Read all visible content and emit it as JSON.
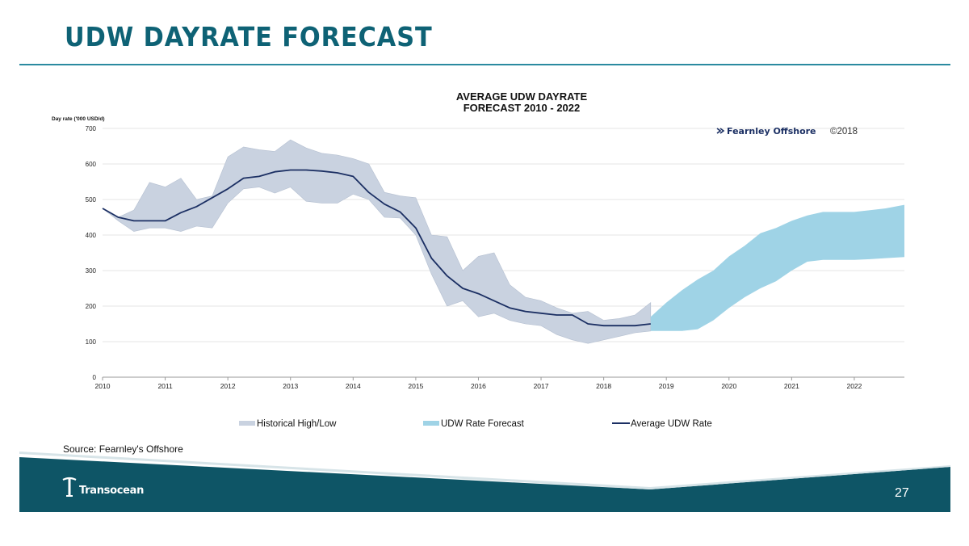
{
  "slide": {
    "title": "UDW DAYRATE FORECAST",
    "source": "Source: Fearnley's Offshore",
    "page_number": "27",
    "logo_text": "Transocean"
  },
  "colors": {
    "title": "#0e6275",
    "footer_band": "#0e5566",
    "historical_band": "#c9d2e0",
    "forecast_band": "#9fd3e6",
    "average_line": "#1b2f63"
  },
  "chart_data": {
    "type": "area",
    "title_line1": "AVERAGE UDW DAYRATE",
    "title_line2": "FORECAST 2010 - 2022",
    "ylabel": "Day rate ('000 USD/d)",
    "watermark_brand": "Fearnley Offshore",
    "watermark_year": "©2018",
    "ylim": [
      0,
      700
    ],
    "yticks": [
      0,
      100,
      200,
      300,
      400,
      500,
      600,
      700
    ],
    "xlim": [
      2010,
      2022.8
    ],
    "xticks": [
      2010,
      2011,
      2012,
      2013,
      2014,
      2015,
      2016,
      2017,
      2018,
      2019,
      2020,
      2021,
      2022
    ],
    "grid": true,
    "legend_position": "bottom",
    "legend": [
      {
        "label": "Historical High/Low",
        "kind": "historical"
      },
      {
        "label": "UDW Rate Forecast",
        "kind": "forecast"
      },
      {
        "label": "Average UDW Rate",
        "kind": "line"
      }
    ],
    "series": [
      {
        "name": "Historical High/Low",
        "x": [
          2010.0,
          2010.25,
          2010.5,
          2010.75,
          2011.0,
          2011.25,
          2011.5,
          2011.75,
          2012.0,
          2012.25,
          2012.5,
          2012.75,
          2013.0,
          2013.25,
          2013.5,
          2013.75,
          2014.0,
          2014.25,
          2014.5,
          2014.75,
          2015.0,
          2015.25,
          2015.5,
          2015.75,
          2016.0,
          2016.25,
          2016.5,
          2016.75,
          2017.0,
          2017.25,
          2017.5,
          2017.75,
          2018.0,
          2018.25,
          2018.5,
          2018.75
        ],
        "high": [
          475,
          450,
          470,
          548,
          535,
          560,
          500,
          510,
          620,
          648,
          640,
          635,
          668,
          645,
          630,
          625,
          615,
          600,
          520,
          510,
          505,
          400,
          395,
          300,
          340,
          350,
          260,
          225,
          215,
          195,
          180,
          185,
          160,
          165,
          175,
          210
        ],
        "low": [
          475,
          440,
          410,
          420,
          420,
          410,
          425,
          420,
          490,
          530,
          535,
          518,
          535,
          495,
          490,
          490,
          515,
          500,
          450,
          448,
          400,
          290,
          200,
          215,
          170,
          180,
          160,
          150,
          145,
          120,
          105,
          95,
          105,
          115,
          125,
          130
        ]
      },
      {
        "name": "UDW Rate Forecast",
        "x": [
          2018.75,
          2019.0,
          2019.25,
          2019.5,
          2019.75,
          2020.0,
          2020.25,
          2020.5,
          2020.75,
          2021.0,
          2021.25,
          2021.5,
          2021.75,
          2022.0,
          2022.25,
          2022.5,
          2022.8
        ],
        "high": [
          170,
          210,
          245,
          275,
          300,
          340,
          370,
          405,
          420,
          440,
          455,
          465,
          465,
          465,
          470,
          475,
          485
        ],
        "low": [
          130,
          130,
          130,
          135,
          160,
          195,
          225,
          250,
          270,
          300,
          325,
          330,
          330,
          330,
          332,
          335,
          338
        ]
      },
      {
        "name": "Average UDW Rate",
        "x": [
          2010.0,
          2010.25,
          2010.5,
          2010.75,
          2011.0,
          2011.25,
          2011.5,
          2011.75,
          2012.0,
          2012.25,
          2012.5,
          2012.75,
          2013.0,
          2013.25,
          2013.5,
          2013.75,
          2014.0,
          2014.25,
          2014.5,
          2014.75,
          2015.0,
          2015.25,
          2015.5,
          2015.75,
          2016.0,
          2016.25,
          2016.5,
          2016.75,
          2017.0,
          2017.25,
          2017.5,
          2017.75,
          2018.0,
          2018.25,
          2018.5,
          2018.75
        ],
        "values": [
          475,
          450,
          440,
          440,
          440,
          463,
          480,
          505,
          530,
          560,
          565,
          578,
          583,
          583,
          580,
          575,
          565,
          520,
          487,
          465,
          420,
          335,
          285,
          250,
          235,
          215,
          195,
          185,
          180,
          175,
          175,
          150,
          145,
          145,
          145,
          150
        ]
      }
    ]
  }
}
